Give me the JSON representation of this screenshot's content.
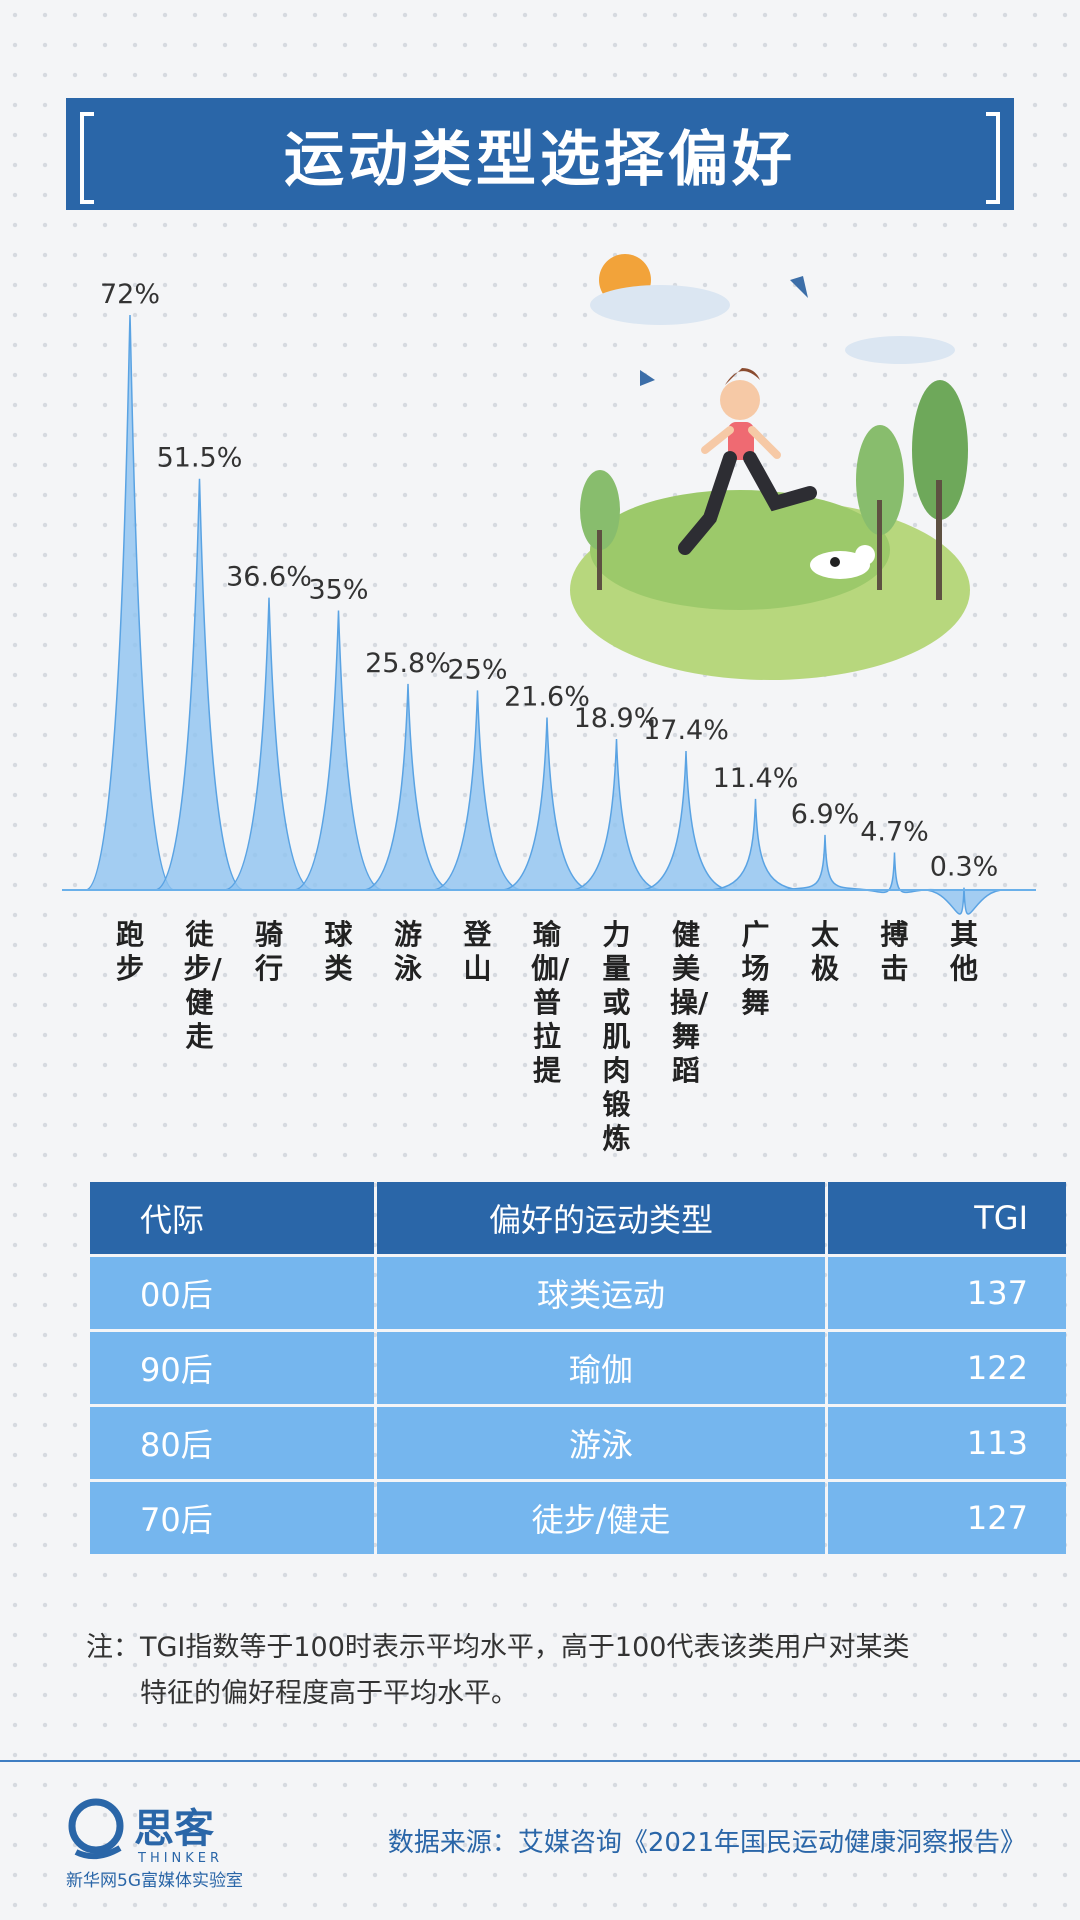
{
  "title": "运动类型选择偏好",
  "chart_data": {
    "type": "area",
    "title": "运动类型选择偏好",
    "categories": [
      "跑步",
      "徒步/健走",
      "骑行",
      "球类",
      "游泳",
      "登山",
      "瑜伽/普拉提",
      "力量或肌肉锻炼",
      "健美操/舞蹈",
      "广场舞",
      "太极",
      "搏击",
      "其他"
    ],
    "values": [
      72,
      51.5,
      36.6,
      35,
      25.8,
      25,
      21.6,
      18.9,
      17.4,
      11.4,
      6.9,
      4.7,
      0.3
    ],
    "value_labels": [
      "72%",
      "51.5%",
      "36.6%",
      "35%",
      "25.8%",
      "25%",
      "21.6%",
      "18.9%",
      "17.4%",
      "11.4%",
      "6.9%",
      "4.7%",
      "0.3%"
    ],
    "unit": "%",
    "ylim": [
      0,
      72
    ],
    "grid": false,
    "colors": {
      "fill": "#8ec3f0",
      "edge": "#5aa3e3",
      "axis": "#6ab0ea"
    }
  },
  "table": {
    "headers": [
      "代际",
      "偏好的运动类型",
      "TGI"
    ],
    "rows": [
      [
        "00后",
        "球类运动",
        "137"
      ],
      [
        "90后",
        "瑜伽",
        "122"
      ],
      [
        "80后",
        "游泳",
        "113"
      ],
      [
        "70后",
        "徒步/健走",
        "127"
      ]
    ],
    "colors": {
      "header": "#2a66a8",
      "cell": "#75b6ee"
    }
  },
  "note": {
    "line1": "注：TGI指数等于100时表示平均水平，高于100代表该类用户对某类",
    "line2": "特征的偏好程度高于平均水平。"
  },
  "footer": {
    "logo_text": "思客",
    "logo_sub": "THINKER",
    "org": "新华网5G富媒体实验室",
    "source": "数据来源：艾媒咨询《2021年国民运动健康洞察报告》"
  }
}
